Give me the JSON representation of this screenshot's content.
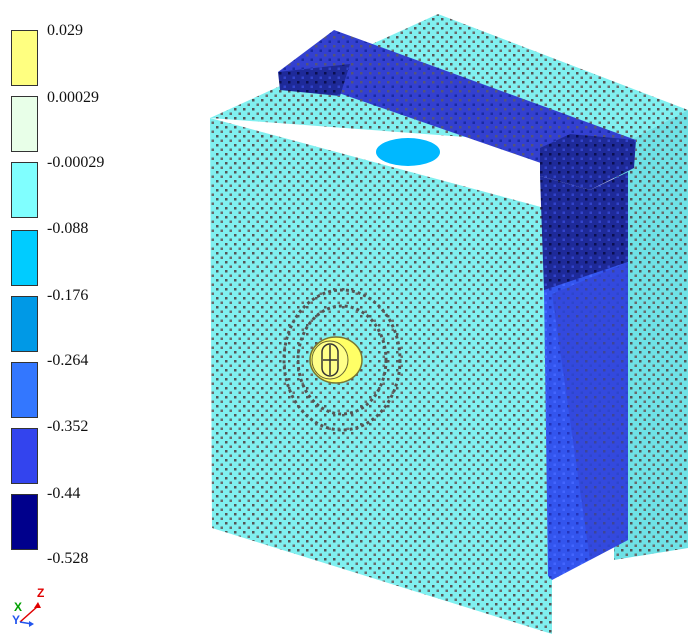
{
  "legend": {
    "ticks": [
      "0.029",
      "0.00029",
      "-0.00029",
      "-0.088",
      "-0.176",
      "-0.264",
      "-0.352",
      "-0.44",
      "-0.528"
    ],
    "colors": [
      "#ffff80",
      "#e8ffe8",
      "#80ffff",
      "#00ccff",
      "#0099e6",
      "#3377ff",
      "#3344ee",
      "#00008c"
    ]
  },
  "triad": {
    "x_label": "X",
    "y_label": "Y",
    "z_label": "Z"
  },
  "model": {
    "mesh_colors": {
      "block": "#80f0f0",
      "slab": "#1e2a99",
      "slab_light": "#3340d0",
      "column": "#3355ee",
      "depression": "#00b8ff",
      "hub": "#ffff66",
      "grid": "#555555"
    }
  }
}
